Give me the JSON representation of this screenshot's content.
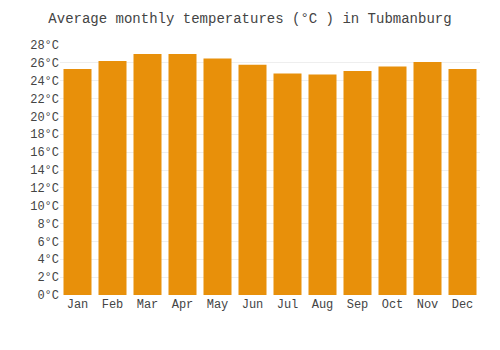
{
  "chart_data": {
    "type": "bar",
    "title": "Average monthly temperatures (°C ) in Tubmanburg",
    "categories": [
      "Jan",
      "Feb",
      "Mar",
      "Apr",
      "May",
      "Jun",
      "Jul",
      "Aug",
      "Sep",
      "Oct",
      "Nov",
      "Dec"
    ],
    "values": [
      25.3,
      26.2,
      27.0,
      27.0,
      26.5,
      25.8,
      24.8,
      24.7,
      25.1,
      25.6,
      26.1,
      25.3
    ],
    "color": "#E8900A",
    "ylim": [
      0,
      28
    ],
    "yticks": [
      {
        "value": 0,
        "label": "0°C"
      },
      {
        "value": 2,
        "label": "2°C"
      },
      {
        "value": 4,
        "label": "4°C"
      },
      {
        "value": 6,
        "label": "6°C"
      },
      {
        "value": 8,
        "label": "8°C"
      },
      {
        "value": 10,
        "label": "10°C"
      },
      {
        "value": 12,
        "label": "12°C"
      },
      {
        "value": 14,
        "label": "14°C"
      },
      {
        "value": 16,
        "label": "16°C"
      },
      {
        "value": 18,
        "label": "18°C"
      },
      {
        "value": 20,
        "label": "20°C"
      },
      {
        "value": 22,
        "label": "22°C"
      },
      {
        "value": 24,
        "label": "24°C"
      },
      {
        "value": 26,
        "label": "26°C"
      },
      {
        "value": 28,
        "label": "28°C"
      }
    ],
    "grid": true
  }
}
